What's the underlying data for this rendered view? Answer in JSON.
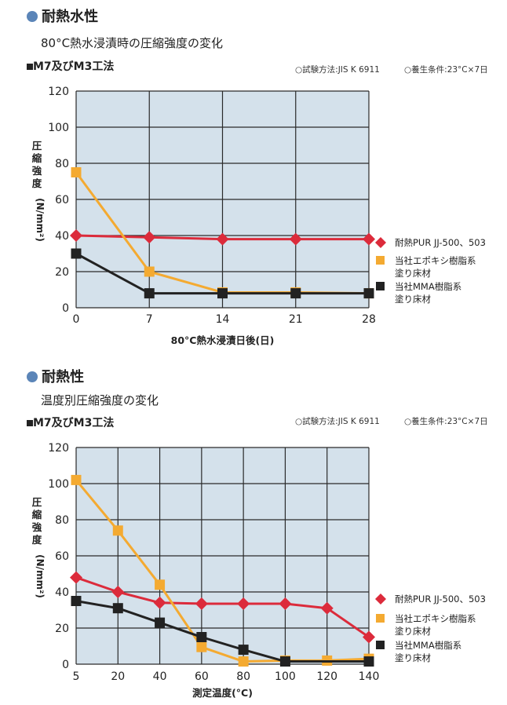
{
  "section1": {
    "title": "耐熱水性",
    "subtitle": "80°C熱水浸漬時の圧縮強度の変化",
    "method": "M7及びM3工法",
    "conditions": [
      "○試験方法:JIS K 6911",
      "○養生条件:23°C×7日"
    ]
  },
  "section2": {
    "title": "耐熱性",
    "subtitle": "温度別圧縮強度の変化",
    "method": "M7及びM3工法",
    "conditions": [
      "○試験方法:JIS K 6911",
      "○養生条件:23°C×7日"
    ]
  },
  "colors": {
    "plot_bg": "#d4e1eb",
    "grid": "#2a2a2a",
    "bullet": "#5b85b8",
    "pur": "#dc2b3b",
    "epoxy": "#f4aa31",
    "mma": "#222222"
  },
  "chart_data": [
    {
      "type": "line",
      "title": "80°C熱水浸漬時の圧縮強度の変化",
      "xlabel": "80°C熱水浸漬日後(日)",
      "ylabel_chars": [
        "圧",
        "縮",
        "強",
        "度"
      ],
      "ylabel_unit": "(N/mm²)",
      "x": [
        0,
        7,
        14,
        21,
        28
      ],
      "xlim": [
        0,
        28
      ],
      "ylim": [
        0,
        120
      ],
      "yticks": [
        0,
        20,
        40,
        60,
        80,
        100,
        120
      ],
      "grid": true,
      "legend_position": "right",
      "series": [
        {
          "name": "耐熱PUR JJ-500、503",
          "label_lines": [
            "耐熱PUR JJ-500、503"
          ],
          "marker": "diamond",
          "color": "#dc2b3b",
          "points": [
            [
              0,
              40
            ],
            [
              7,
              39
            ],
            [
              14,
              38
            ],
            [
              21,
              38
            ],
            [
              28,
              38
            ]
          ]
        },
        {
          "name": "当社エポキシ樹脂系塗り床材",
          "label_lines": [
            "当社エポキシ樹脂系",
            "塗り床材"
          ],
          "marker": "square",
          "color": "#f4aa31",
          "points": [
            [
              0,
              75
            ],
            [
              7,
              20
            ],
            [
              14,
              8.5
            ],
            [
              21,
              8.5
            ],
            [
              28,
              8
            ]
          ]
        },
        {
          "name": "当社MMA樹脂系塗り床材",
          "label_lines": [
            "当社MMA樹脂系",
            "塗り床材"
          ],
          "marker": "square",
          "color": "#222222",
          "points": [
            [
              0,
              30
            ],
            [
              7,
              8
            ],
            [
              14,
              8
            ],
            [
              21,
              8
            ],
            [
              28,
              8
            ]
          ]
        }
      ]
    },
    {
      "type": "line",
      "title": "温度別圧縮強度の変化",
      "xlabel": "測定温度(°C)",
      "ylabel_chars": [
        "圧",
        "縮",
        "強",
        "度"
      ],
      "ylabel_unit": "(N/mm²)",
      "x": [
        5,
        20,
        40,
        60,
        80,
        100,
        120,
        140
      ],
      "xlim": [
        5,
        140
      ],
      "ylim": [
        0,
        120
      ],
      "yticks": [
        0,
        20,
        40,
        60,
        80,
        100,
        120
      ],
      "grid": true,
      "legend_position": "right",
      "series": [
        {
          "name": "耐熱PUR JJ-500、503",
          "label_lines": [
            "耐熱PUR JJ-500、503"
          ],
          "marker": "diamond",
          "color": "#dc2b3b",
          "points": [
            [
              5,
              48
            ],
            [
              20,
              40
            ],
            [
              40,
              34
            ],
            [
              60,
              33.5
            ],
            [
              80,
              33.5
            ],
            [
              100,
              33.5
            ],
            [
              120,
              31
            ],
            [
              140,
              15
            ]
          ]
        },
        {
          "name": "当社エポキシ樹脂系塗り床材",
          "label_lines": [
            "当社エポキシ樹脂系",
            "塗り床材"
          ],
          "marker": "square",
          "color": "#f4aa31",
          "points": [
            [
              5,
              102
            ],
            [
              20,
              74
            ],
            [
              40,
              44
            ],
            [
              60,
              9.5
            ],
            [
              80,
              1.5
            ],
            [
              100,
              2
            ],
            [
              120,
              2
            ],
            [
              140,
              3
            ]
          ]
        },
        {
          "name": "当社MMA樹脂系塗り床材",
          "label_lines": [
            "当社MMA樹脂系",
            "塗り床材"
          ],
          "marker": "square",
          "color": "#222222",
          "points": [
            [
              5,
              35
            ],
            [
              20,
              31
            ],
            [
              40,
              23
            ],
            [
              60,
              15
            ],
            [
              80,
              8
            ],
            [
              100,
              1.5
            ],
            [
              140,
              1.5
            ]
          ]
        }
      ]
    }
  ]
}
